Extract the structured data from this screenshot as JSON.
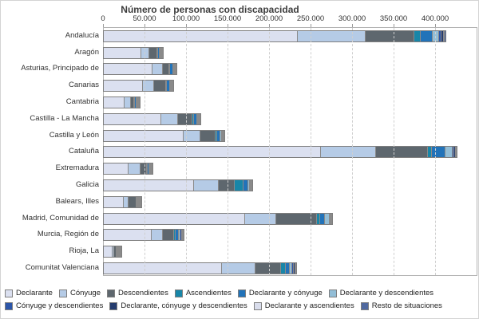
{
  "chart_data": {
    "type": "bar",
    "orientation": "horizontal",
    "stacked": true,
    "title": "Número de personas con discapacidad",
    "x_axis": {
      "tick_labels": [
        "0",
        "50.000",
        "100.000",
        "150.000",
        "200.000",
        "250.000",
        "300.000",
        "350.000",
        "400.000"
      ],
      "tick_step": 50000,
      "range": [
        0,
        450000
      ],
      "grid": "dashed-vertical"
    },
    "legend_position": "bottom",
    "categories": [
      "Andalucía",
      "Aragón",
      "Asturias, Principado de",
      "Canarias",
      "Cantabria",
      "Castilla - La Mancha",
      "Castilla y León",
      "Cataluña",
      "Extremadura",
      "Galicia",
      "Balears, Illes",
      "Madrid, Comunidad de",
      "Murcia, Región de",
      "Rioja, La",
      "Comunitat Valenciana"
    ],
    "series": [
      {
        "name": "Declarante",
        "color": "#dbe0f0",
        "values": [
          233000,
          44500,
          58000,
          46000,
          24300,
          68300,
          95500,
          261000,
          29100,
          107700,
          23400,
          169500,
          56400,
          9300,
          141300
        ]
      },
      {
        "name": "Cónyuge",
        "color": "#b5cbe6",
        "values": [
          81000,
          9600,
          12000,
          14000,
          7100,
          20200,
          20200,
          66000,
          13800,
          29500,
          5800,
          37500,
          13800,
          2400,
          40100
        ]
      },
      {
        "name": "Descendientes",
        "color": "#5e676e",
        "values": [
          59500,
          9600,
          8000,
          14000,
          4200,
          17500,
          17600,
          62000,
          8000,
          19200,
          9000,
          49000,
          13500,
          2400,
          31400
        ]
      },
      {
        "name": "Ascendientes",
        "color": "#1886a8",
        "values": [
          7500,
          800,
          1200,
          1500,
          500,
          1500,
          2000,
          5000,
          800,
          10600,
          500,
          3800,
          1500,
          300,
          5500
        ]
      },
      {
        "name": "Declarante y cónyuge",
        "color": "#2273b9",
        "values": [
          14000,
          2000,
          3500,
          3000,
          1800,
          4000,
          4500,
          17000,
          1800,
          5800,
          900,
          5800,
          4500,
          900,
          4800
        ]
      },
      {
        "name": "Declarante y descendientes",
        "color": "#93bed7",
        "values": [
          8000,
          700,
          1000,
          1500,
          600,
          1200,
          1200,
          8000,
          500,
          2000,
          300,
          5500,
          1500,
          300,
          3000
        ]
      },
      {
        "name": "Cónyuge y descendientes",
        "color": "#2c56a9",
        "values": [
          3000,
          400,
          500,
          800,
          400,
          500,
          400,
          2500,
          300,
          1200,
          200,
          900,
          2000,
          300,
          2000
        ]
      },
      {
        "name": "Declarante, cónyuge y descendientes",
        "color": "#253d6f",
        "values": [
          2500,
          300,
          400,
          600,
          300,
          400,
          300,
          1500,
          300,
          1000,
          200,
          700,
          1500,
          200,
          1500
        ]
      },
      {
        "name": "Declarante y ascendientes",
        "color": "#d9ddec",
        "values": [
          1500,
          200,
          200,
          300,
          200,
          200,
          200,
          1000,
          100,
          600,
          100,
          400,
          600,
          100,
          700
        ]
      },
      {
        "name": "Resto de situaciones",
        "color": "#50699f",
        "values": [
          1500,
          200,
          200,
          300,
          200,
          200,
          200,
          1000,
          100,
          600,
          100,
          400,
          600,
          100,
          700
        ]
      }
    ]
  }
}
